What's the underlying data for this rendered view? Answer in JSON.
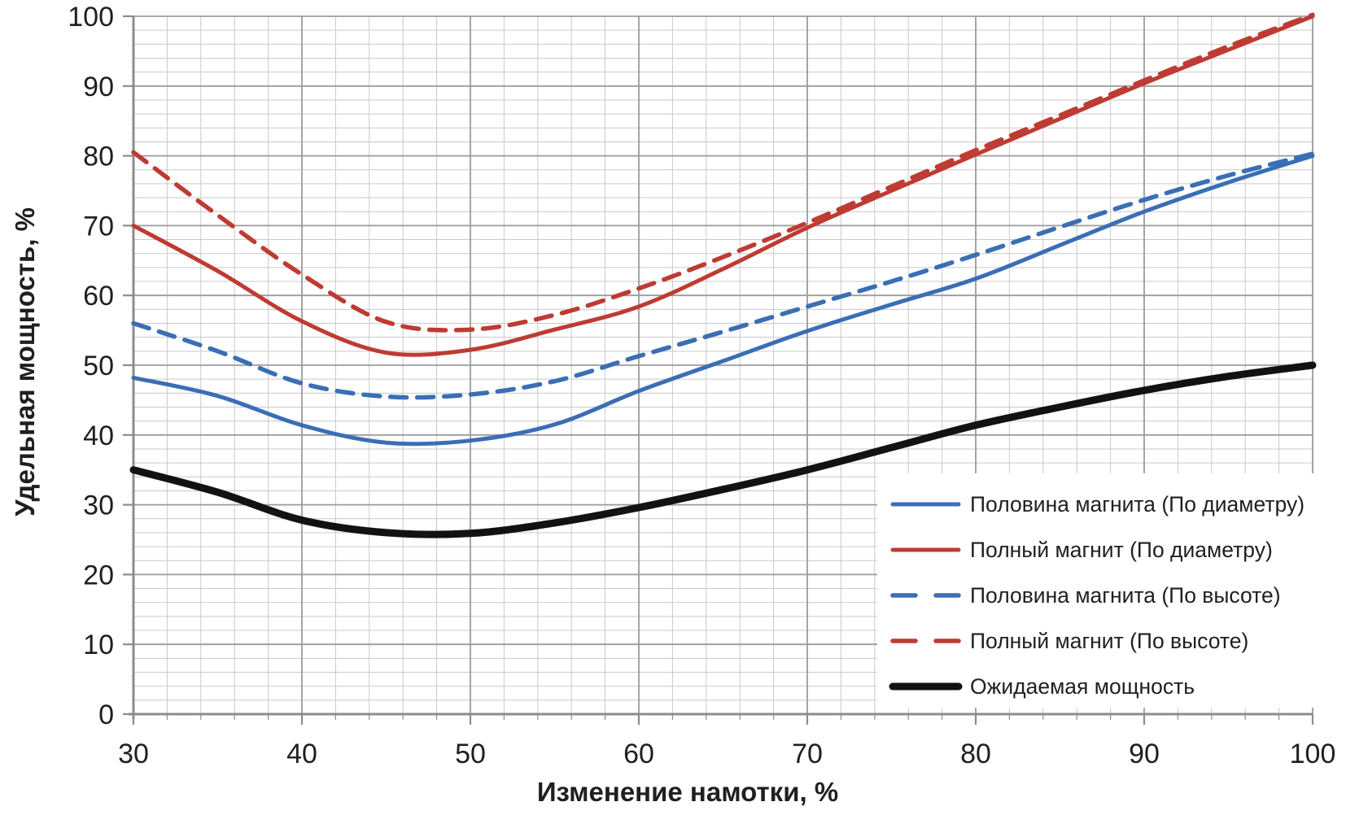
{
  "colors": {
    "background": "#ffffff",
    "grid_minor": "#c9c9c9",
    "grid_major": "#9b9b9b",
    "axis_line": "#8c8c8c",
    "text": "#1f1f1f",
    "blue": "#3a6eb5",
    "red": "#be3b33",
    "black": "#121212"
  },
  "chart_data": {
    "type": "line",
    "title": "",
    "xlabel": "Изменение намотки, %",
    "ylabel": "Удельная мощность, %",
    "xlim": [
      30,
      100
    ],
    "ylim": [
      0,
      100
    ],
    "x_major_ticks": [
      30,
      40,
      50,
      60,
      70,
      80,
      90,
      100
    ],
    "y_major_ticks": [
      0,
      10,
      20,
      30,
      40,
      50,
      60,
      70,
      80,
      90,
      100
    ],
    "minor_step": 2,
    "grid": "on",
    "legend_position": "inside-bottom-right",
    "x": [
      30,
      35,
      40,
      45,
      50,
      55,
      60,
      65,
      70,
      75,
      80,
      85,
      90,
      95,
      100
    ],
    "series": [
      {
        "name": "Половина магнита (По диаметру)",
        "style": "solid",
        "color": "#3a6eb5",
        "width": 5,
        "values": [
          48.2,
          45.6,
          41.4,
          38.9,
          39.2,
          41.5,
          46.3,
          50.6,
          54.9,
          58.7,
          62.4,
          67.2,
          72.0,
          76.2,
          80.0
        ]
      },
      {
        "name": "Полный магнит (По диаметру)",
        "style": "solid",
        "color": "#be3b33",
        "width": 5,
        "values": [
          70.0,
          63.5,
          56.3,
          51.8,
          52.2,
          55.1,
          58.4,
          63.8,
          69.7,
          75.0,
          80.2,
          85.3,
          90.4,
          95.2,
          100.0
        ]
      },
      {
        "name": "Половина магнита (По высоте)",
        "style": "dashed",
        "color": "#3a6eb5",
        "width": 5.5,
        "values": [
          56.0,
          52.0,
          47.4,
          45.5,
          45.8,
          47.7,
          51.3,
          54.8,
          58.4,
          62.0,
          65.8,
          69.8,
          73.7,
          77.2,
          80.3
        ]
      },
      {
        "name": "Полный магнит (По высоте)",
        "style": "dashed",
        "color": "#be3b33",
        "width": 5.5,
        "values": [
          80.5,
          71.5,
          63.0,
          56.2,
          55.1,
          57.2,
          61.0,
          65.5,
          70.4,
          75.6,
          80.8,
          85.8,
          90.8,
          95.7,
          100.2
        ]
      },
      {
        "name": "Ожидаемая мощность",
        "style": "solid",
        "color": "#121212",
        "width": 9,
        "values": [
          35.0,
          31.8,
          27.8,
          26.0,
          25.9,
          27.4,
          29.6,
          32.2,
          35.0,
          38.2,
          41.4,
          44.0,
          46.4,
          48.4,
          50.0
        ]
      }
    ]
  }
}
